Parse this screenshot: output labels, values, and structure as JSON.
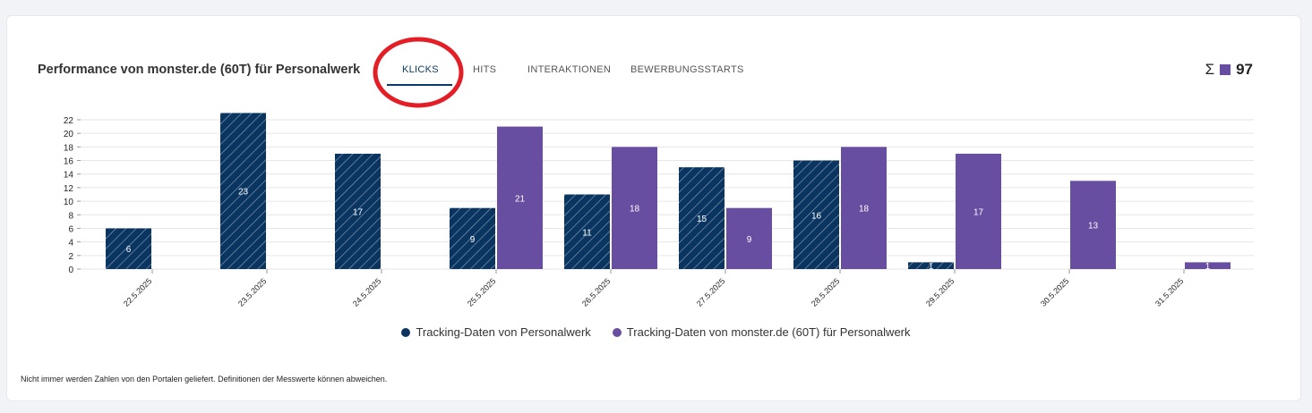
{
  "header": {
    "title": "Performance von monster.de (60T) für Personalwerk",
    "tabs": [
      {
        "label": "KLICKS",
        "active": true
      },
      {
        "label": "HITS"
      },
      {
        "label": "INTERAKTIONEN"
      },
      {
        "label": "BEWERBUNGSSTARTS"
      }
    ],
    "total_symbol": "Σ",
    "total": "97"
  },
  "colors": {
    "tracking": "#0a3561",
    "portal": "#674ea0",
    "annotation": "#e41e26"
  },
  "chart_data": {
    "type": "bar",
    "categories": [
      "22.5.2025",
      "23.5.2025",
      "24.5.2025",
      "25.5.2025",
      "26.5.2025",
      "27.5.2025",
      "28.5.2025",
      "29.5.2025",
      "30.5.2025",
      "31.5.2025"
    ],
    "series": [
      {
        "name": "Tracking-Daten von Personalwerk",
        "values": [
          6,
          23,
          17,
          9,
          11,
          15,
          16,
          1,
          0,
          0
        ],
        "pattern": "hatched"
      },
      {
        "name": "Tracking-Daten von monster.de (60T) für Personalwerk",
        "values": [
          0,
          0,
          0,
          21,
          18,
          9,
          18,
          17,
          13,
          1
        ]
      }
    ],
    "yticks": [
      0,
      2,
      4,
      6,
      8,
      10,
      12,
      14,
      16,
      18,
      20,
      22
    ],
    "ylim": [
      0,
      22
    ],
    "grid": true,
    "legend": "bottom"
  },
  "footnote": "Nicht immer werden Zahlen von den Portalen geliefert. Definitionen der Messwerte können abweichen."
}
